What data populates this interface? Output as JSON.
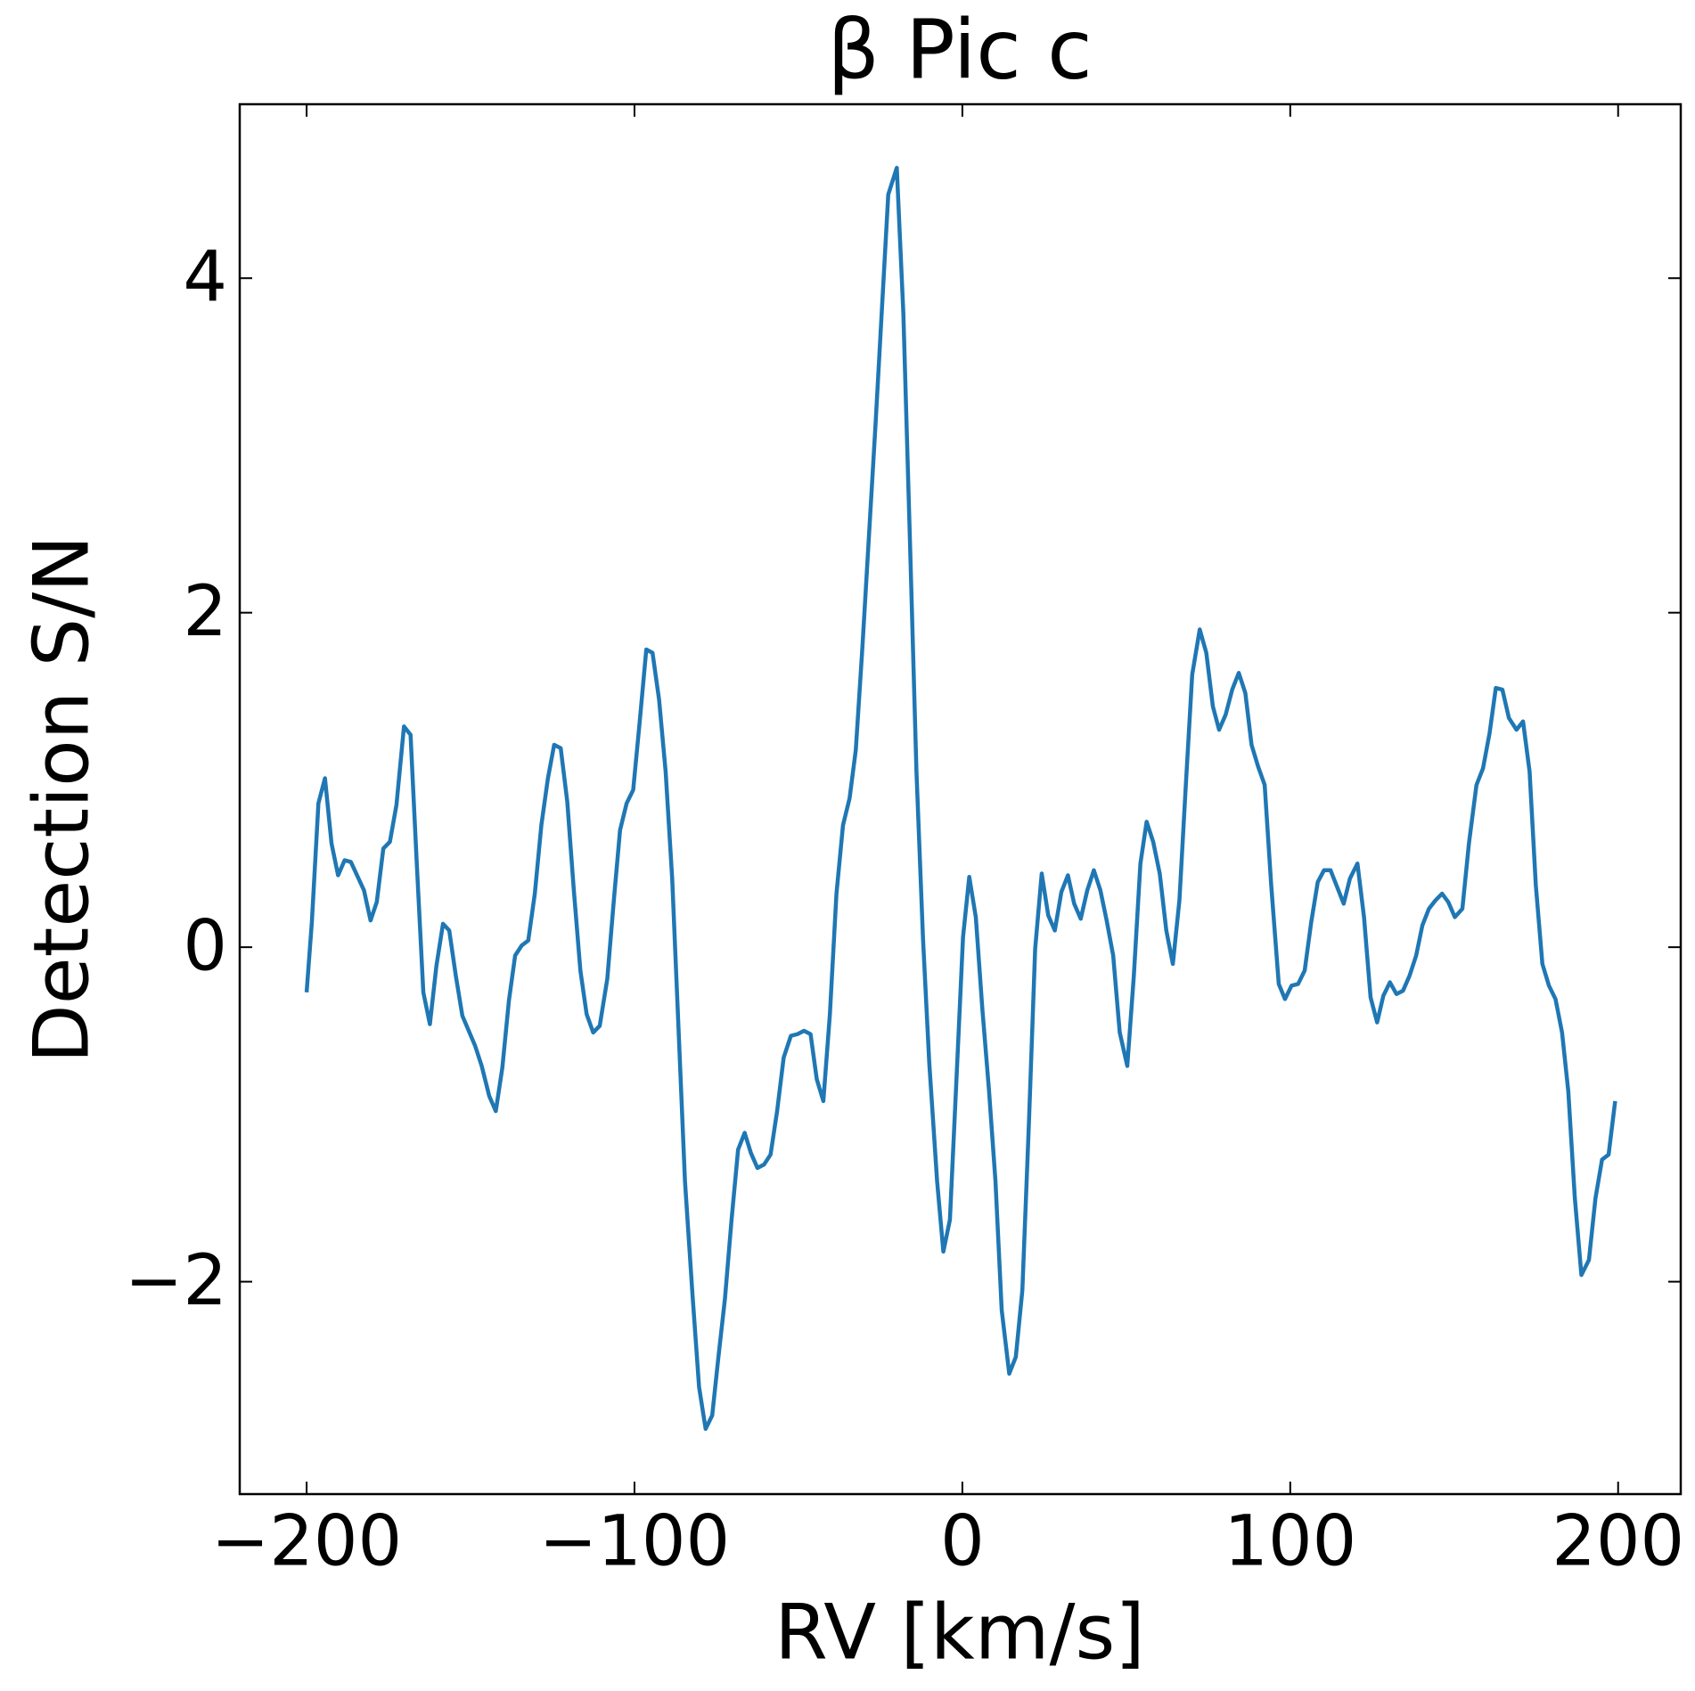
{
  "chart_data": {
    "type": "line",
    "title": "β Pic c",
    "xlabel": "RV [km/s]",
    "ylabel": "Detection S/N",
    "color": "#1f77b4",
    "xlim": [
      -220.4,
      219.1
    ],
    "ylim": [
      -3.27,
      5.04
    ],
    "xticks": [
      {
        "value": -200,
        "label": "−200"
      },
      {
        "value": -100,
        "label": "−100"
      },
      0,
      100,
      200
    ],
    "yticks": [
      {
        "value": -2,
        "label": "−2"
      },
      0,
      2,
      4
    ],
    "grid": false,
    "x": [
      -200,
      -198.4,
      -196.4,
      -194.4,
      -192.4,
      -190.4,
      -188.4,
      -186.5,
      -182.5,
      -180.5,
      -178.6,
      -176.6,
      -174.6,
      -172.6,
      -170.3,
      -168.3,
      -166.4,
      -164.4,
      -162.4,
      -160.4,
      -158.4,
      -156.5,
      -154.5,
      -152.5,
      -148.6,
      -146.6,
      -144.3,
      -142.3,
      -140.3,
      -138.3,
      -136.4,
      -134.4,
      -132.4,
      -130.4,
      -128.4,
      -126.4,
      -124.5,
      -122.5,
      -120.5,
      -118.5,
      -116.5,
      -114.6,
      -112.6,
      -110.6,
      -108.3,
      -106.3,
      -104.4,
      -102.4,
      -100.4,
      -98.4,
      -96.4,
      -94.5,
      -92.5,
      -90.5,
      -88.5,
      -84.6,
      -82.3,
      -80.3,
      -78.3,
      -76.3,
      -74.4,
      -72.4,
      -70.4,
      -68.4,
      -66.4,
      -64.5,
      -62.5,
      -60.5,
      -58.5,
      -56.5,
      -54.5,
      -52.3,
      -50.3,
      -48.3,
      -46.3,
      -44.4,
      -42.4,
      -40.4,
      -38.4,
      -36.4,
      -34.4,
      -32.5,
      -30.5,
      -26.5,
      -22.6,
      -20.0,
      -18.0,
      -16.0,
      -14.0,
      -12.0,
      -10.1,
      -7.7,
      -5.8,
      -3.8,
      -1.8,
      0.2,
      2.1,
      4.1,
      6.1,
      8.1,
      10.1,
      12.0,
      14.3,
      16.3,
      18.3,
      20.3,
      22.2,
      24.2,
      26.2,
      28.2,
      30.2,
      32.2,
      34.1,
      36.1,
      38.1,
      40.1,
      42.1,
      44.0,
      46.0,
      48.0,
      50.3,
      52.3,
      54.3,
      56.2,
      58.2,
      60.2,
      62.2,
      64.2,
      66.2,
      68.1,
      70.1,
      72.4,
      74.4,
      76.4,
      78.3,
      80.3,
      82.3,
      84.3,
      86.3,
      88.2,
      90.2,
      92.2,
      94.2,
      96.5,
      98.4,
      100.4,
      102.4,
      104.4,
      106.4,
      108.4,
      110.3,
      112.3,
      114.3,
      116.3,
      118.2,
      120.5,
      122.5,
      124.5,
      126.5,
      128.4,
      130.4,
      132.4,
      134.4,
      136.4,
      138.4,
      140.3,
      142.3,
      144.3,
      146.3,
      148.2,
      150.2,
      152.5,
      154.5,
      156.8,
      158.8,
      160.8,
      162.7,
      164.7,
      166.7,
      169.0,
      171.0,
      173.0,
      174.9,
      176.9,
      178.9,
      180.9,
      182.9,
      184.8,
      186.8,
      188.8,
      191.1,
      193.1,
      195.1,
      197.1,
      199.1
    ],
    "values": [
      -0.27,
      0.15,
      0.86,
      1.01,
      0.62,
      0.43,
      0.52,
      0.51,
      0.34,
      0.16,
      0.27,
      0.59,
      0.63,
      0.85,
      1.32,
      1.27,
      0.5,
      -0.27,
      -0.46,
      -0.11,
      0.14,
      0.1,
      -0.17,
      -0.41,
      -0.59,
      -0.71,
      -0.89,
      -0.98,
      -0.72,
      -0.32,
      -0.05,
      0.01,
      0.04,
      0.32,
      0.73,
      1.01,
      1.21,
      1.19,
      0.87,
      0.34,
      -0.14,
      -0.4,
      -0.51,
      -0.47,
      -0.19,
      0.28,
      0.7,
      0.86,
      0.94,
      1.35,
      1.78,
      1.76,
      1.48,
      1.05,
      0.41,
      -1.4,
      -2.08,
      -2.63,
      -2.88,
      -2.8,
      -2.45,
      -2.1,
      -1.63,
      -1.21,
      -1.11,
      -1.23,
      -1.32,
      -1.3,
      -1.24,
      -0.98,
      -0.66,
      -0.53,
      -0.52,
      -0.5,
      -0.52,
      -0.79,
      -0.92,
      -0.4,
      0.32,
      0.73,
      0.89,
      1.18,
      1.79,
      3.12,
      4.5,
      4.66,
      3.79,
      2.44,
      1.05,
      0.05,
      -0.69,
      -1.4,
      -1.82,
      -1.63,
      -0.79,
      0.06,
      0.42,
      0.18,
      -0.37,
      -0.85,
      -1.4,
      -2.17,
      -2.55,
      -2.45,
      -2.05,
      -1.05,
      -0.01,
      0.44,
      0.19,
      0.1,
      0.33,
      0.43,
      0.26,
      0.17,
      0.34,
      0.46,
      0.34,
      0.16,
      -0.05,
      -0.51,
      -0.71,
      -0.17,
      0.5,
      0.75,
      0.63,
      0.44,
      0.1,
      -0.1,
      0.28,
      0.95,
      1.63,
      1.9,
      1.76,
      1.44,
      1.3,
      1.39,
      1.54,
      1.64,
      1.52,
      1.21,
      1.08,
      0.97,
      0.37,
      -0.22,
      -0.31,
      -0.23,
      -0.22,
      -0.14,
      0.15,
      0.39,
      0.46,
      0.46,
      0.36,
      0.26,
      0.41,
      0.5,
      0.18,
      -0.3,
      -0.45,
      -0.29,
      -0.21,
      -0.28,
      -0.26,
      -0.17,
      -0.05,
      0.13,
      0.23,
      0.28,
      0.32,
      0.27,
      0.18,
      0.23,
      0.62,
      0.97,
      1.07,
      1.28,
      1.55,
      1.54,
      1.37,
      1.3,
      1.35,
      1.05,
      0.37,
      -0.1,
      -0.23,
      -0.31,
      -0.51,
      -0.86,
      -1.5,
      -1.96,
      -1.87,
      -1.5,
      -1.27,
      -1.24,
      -0.92
    ]
  }
}
